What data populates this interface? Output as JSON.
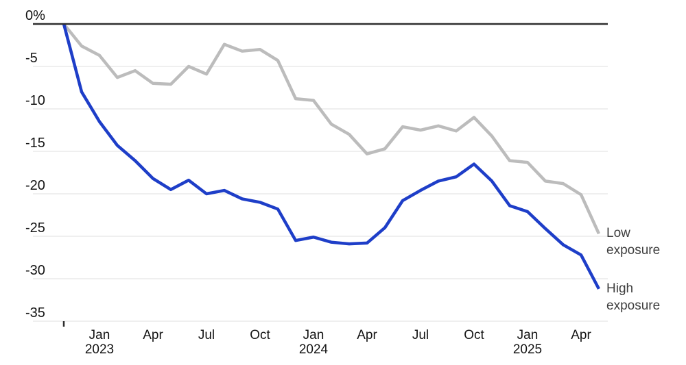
{
  "chart_data": {
    "type": "line",
    "title": "",
    "unit": "%",
    "x": [
      "Nov 2022",
      "Dec 2022",
      "Jan 2023",
      "Feb 2023",
      "Mar 2023",
      "Apr 2023",
      "May 2023",
      "Jun 2023",
      "Jul 2023",
      "Aug 2023",
      "Sep 2023",
      "Oct 2023",
      "Nov 2023",
      "Dec 2023",
      "Jan 2024",
      "Feb 2024",
      "Mar 2024",
      "Apr 2024",
      "May 2024",
      "Jun 2024",
      "Jul 2024",
      "Aug 2024",
      "Sep 2024",
      "Oct 2024",
      "Nov 2024",
      "Dec 2024",
      "Jan 2025",
      "Feb 2025",
      "Mar 2025",
      "Apr 2025",
      "May 2025"
    ],
    "series": [
      {
        "name": "Low exposure",
        "color": "#bcbcbc",
        "values": [
          0,
          -2.6,
          -3.7,
          -6.3,
          -5.5,
          -7.0,
          -7.1,
          -5.0,
          -5.9,
          -2.4,
          -3.2,
          -3.0,
          -4.3,
          -8.8,
          -9.0,
          -11.8,
          -13.0,
          -15.3,
          -14.7,
          -12.1,
          -12.5,
          -12.0,
          -12.6,
          -11.0,
          -13.2,
          -16.1,
          -16.3,
          -18.5,
          -18.8,
          -20.1,
          -24.7
        ]
      },
      {
        "name": "High exposure",
        "color": "#1e3ec8",
        "values": [
          0,
          -8.0,
          -11.5,
          -14.3,
          -16.1,
          -18.2,
          -19.5,
          -18.4,
          -20.0,
          -19.6,
          -20.6,
          -21.0,
          -21.8,
          -25.5,
          -25.1,
          -25.7,
          -25.9,
          -25.8,
          -24.0,
          -20.8,
          -19.6,
          -18.5,
          -18.0,
          -16.5,
          -18.5,
          -21.4,
          -22.1,
          -24.1,
          -26.0,
          -27.2,
          -31.2
        ]
      }
    ],
    "ylim": [
      -35,
      0
    ],
    "yticks": [
      0,
      -5,
      -10,
      -15,
      -20,
      -25,
      -30,
      -35
    ],
    "ytick_labels": [
      "0%",
      "-5",
      "-10",
      "-15",
      "-20",
      "-25",
      "-30",
      "-35"
    ],
    "xtick_months": [
      "Jan",
      "Apr",
      "Jul",
      "Oct"
    ],
    "grid": "horizontal",
    "legend_position": "line-end-labels-right"
  },
  "colors": {
    "axis_line": "#2e2e2e",
    "gridline": "#eaeaea",
    "tick_text": "#141414",
    "legend_text": "#3e3e3e",
    "background": "#ffffff"
  }
}
